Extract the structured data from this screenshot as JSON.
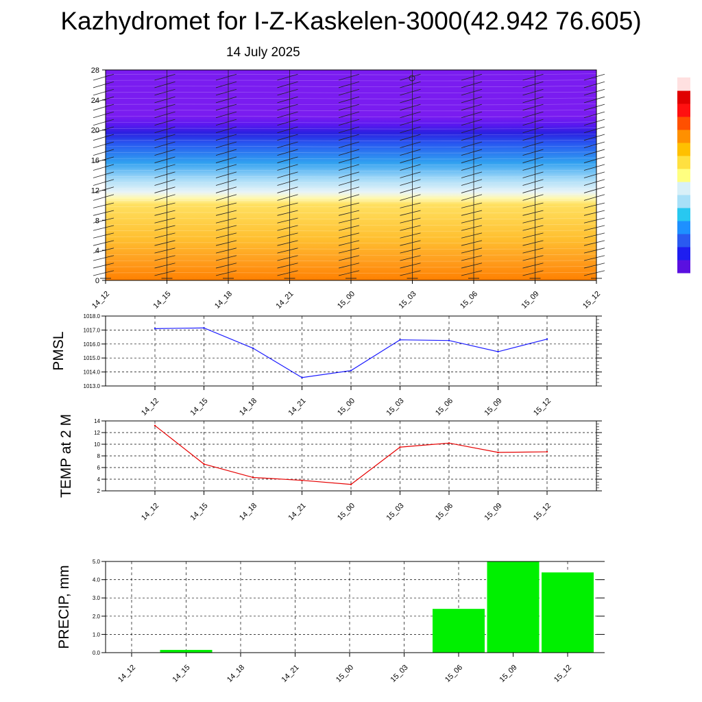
{
  "header": {
    "title": "Kazhydromet for I-Z-Kaskelen-3000(42.942 76.605)",
    "date": "14 July 2025"
  },
  "colors": {
    "pmsl_line": "#1a1aff",
    "temp_line": "#e60000",
    "precip_bar": "#00f000",
    "cross_section_top": "#7a1cf0",
    "cross_section_bottom": "#ff8000"
  },
  "chart_data": [
    {
      "type": "heatmap",
      "title": "",
      "categories": [
        "14_12",
        "14_15",
        "14_18",
        "14_21",
        "15_00",
        "15_03",
        "15_06",
        "15_09",
        "15_12"
      ],
      "yticks": [
        "0",
        "4",
        "8",
        "12",
        "16",
        "20",
        "24",
        "28"
      ],
      "ylim": [
        0,
        28
      ],
      "ylabel": "",
      "legend": "colorbar right",
      "colorbar_colors": [
        "#5a10e0",
        "#1e1ef0",
        "#2a5af0",
        "#1e90ff",
        "#28c8f0",
        "#a8e0f8",
        "#d8f0f8",
        "#ffff80",
        "#ffe040",
        "#ffc000",
        "#ff9000",
        "#ff5000",
        "#ff1010",
        "#e00000",
        "#ffe0e0"
      ],
      "bands": [
        {
          "from": 0,
          "to": 3,
          "color": "#ff8000"
        },
        {
          "from": 3,
          "to": 11,
          "color": "#ffc030"
        },
        {
          "from": 11,
          "to": 13,
          "color": "#d8f0f8"
        },
        {
          "from": 13,
          "to": 17,
          "color": "#30a0f0"
        },
        {
          "from": 17,
          "to": 21,
          "color": "#2a20e0"
        },
        {
          "from": 21,
          "to": 28,
          "color": "#7a1cf0"
        }
      ]
    },
    {
      "type": "line",
      "ylabel": "PMSL",
      "categories": [
        "14_12",
        "14_15",
        "14_18",
        "14_21",
        "15_00",
        "15_03",
        "15_06",
        "15_09",
        "15_12"
      ],
      "series": [
        {
          "values": [
            1017.1,
            1017.15,
            1015.7,
            1013.6,
            1014.1,
            1016.3,
            1016.25,
            1015.45,
            1016.35
          ]
        }
      ],
      "ylim": [
        1013.0,
        1018.0
      ],
      "yticks": [
        "1013.0",
        "1014.0",
        "1015.0",
        "1016.0",
        "1017.0",
        "1018.0"
      ],
      "grid": true
    },
    {
      "type": "line",
      "ylabel": "TEMP at 2 M",
      "categories": [
        "14_12",
        "14_15",
        "14_18",
        "14_21",
        "15_00",
        "15_03",
        "15_06",
        "15_09",
        "15_12"
      ],
      "series": [
        {
          "values": [
            13.2,
            6.6,
            4.3,
            3.8,
            3.1,
            9.5,
            10.2,
            8.6,
            8.7
          ]
        }
      ],
      "ylim": [
        2,
        14
      ],
      "yticks": [
        "2",
        "4",
        "6",
        "8",
        "10",
        "12",
        "14"
      ],
      "grid": true
    },
    {
      "type": "bar",
      "ylabel": "PRECIP, mm",
      "categories": [
        "14_12",
        "14_15",
        "14_18",
        "14_21",
        "15_00",
        "15_03",
        "15_06",
        "15_09",
        "15_12"
      ],
      "values": [
        0.0,
        0.15,
        0.0,
        0.0,
        0.0,
        0.0,
        2.4,
        5.0,
        4.4
      ],
      "ylim": [
        0.0,
        5.0
      ],
      "yticks": [
        "0.0",
        "1.0",
        "2.0",
        "3.0",
        "4.0",
        "5.0"
      ],
      "grid": true
    }
  ]
}
